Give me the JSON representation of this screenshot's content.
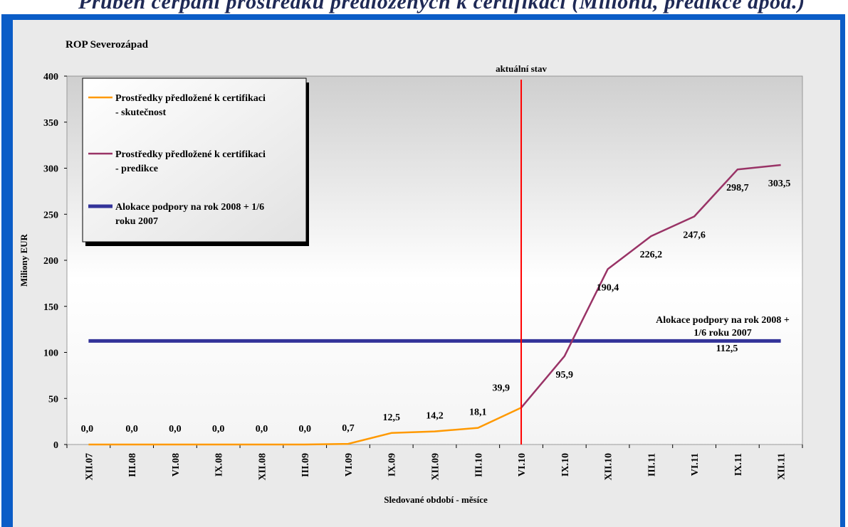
{
  "header_text": "Průběh čerpání prostředků předložených k certifikaci (Milionů, predikce apod.)",
  "chart_data": {
    "type": "line",
    "title": "ROP Severozápad",
    "xlabel": "Sledované období - měsíce",
    "ylabel": "Miliony EUR",
    "ylim": [
      0,
      400
    ],
    "yticks": [
      0,
      50,
      100,
      150,
      200,
      250,
      300,
      350,
      400
    ],
    "categories": [
      "XII.07",
      "III.08",
      "VI.08",
      "IX.08",
      "XII.08",
      "III.09",
      "VI.09",
      "IX.09",
      "XII.09",
      "III.10",
      "VI.10",
      "IX.10",
      "XII.10",
      "III.11",
      "VI.11",
      "IX.11",
      "XII.11"
    ],
    "series": [
      {
        "name": "Prostředky předložené k certifikaci - skutečnost",
        "color": "#ff9900",
        "values": [
          0.0,
          0.0,
          0.0,
          0.0,
          0.0,
          0.0,
          0.7,
          12.5,
          14.2,
          18.1,
          39.9,
          null,
          null,
          null,
          null,
          null,
          null
        ],
        "labels": [
          "0,0",
          "0,0",
          "0,0",
          "0,0",
          "0,0",
          "0,0",
          "0,7",
          "12,5",
          "14,2",
          "18,1",
          "39,9",
          null,
          null,
          null,
          null,
          null,
          null
        ]
      },
      {
        "name": "Prostředky předložené k certifikaci - predikce",
        "color": "#993366",
        "values": [
          null,
          null,
          null,
          null,
          null,
          null,
          null,
          null,
          null,
          null,
          39.9,
          95.9,
          190.4,
          226.2,
          247.6,
          298.7,
          303.5
        ],
        "labels": [
          null,
          null,
          null,
          null,
          null,
          null,
          null,
          null,
          null,
          null,
          null,
          "95,9",
          "190,4",
          "226,2",
          "247,6",
          "298,7",
          "303,5"
        ]
      },
      {
        "name": "Alokace podpory na rok 2008 + 1/6 roku 2007",
        "color": "#333399",
        "constant": 112.5,
        "value_label": "112,5"
      }
    ],
    "vline": {
      "category": "VI.10",
      "label": "aktuální stav",
      "color": "#ff0000"
    },
    "annotation": "Alokace podpory na rok 2008 + 1/6 roku 2007",
    "legend": [
      {
        "text_line1": "Prostředky předložené k certifikaci",
        "text_line2": "- skutečnost"
      },
      {
        "text_line1": "Prostředky předložené k certifikaci",
        "text_line2": "- predikce"
      },
      {
        "text_line1": "Alokace podpory na rok 2008 + 1/6",
        "text_line2": "roku 2007"
      }
    ],
    "legend_position": "top-left",
    "grid": false
  }
}
